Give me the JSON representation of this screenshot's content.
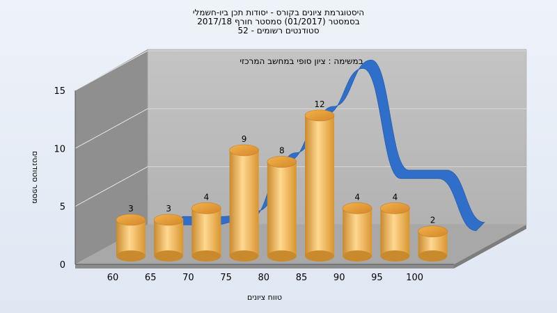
{
  "chart_data": {
    "type": "bar",
    "title_lines": [
      "היסטוגרמת ציונים בקורס - יסודות תכן ביו-חשמלי",
      "בסמסטר  (01/2017)  סמסטר חורף 2017/18",
      "סטודנטים רשומים - 52"
    ],
    "subtitle": "במשימה : ציון סופי במחשב המרכזי",
    "xlabel": "טווח ציונים",
    "ylabel": "מספר סטודנטים",
    "categories": [
      "60",
      "65",
      "70",
      "75",
      "80",
      "85",
      "90",
      "95",
      "100"
    ],
    "x_ticks": [
      "60",
      "65",
      "70",
      "75",
      "80",
      "85",
      "90",
      "95",
      "100"
    ],
    "values": [
      3,
      3,
      4,
      9,
      8,
      12,
      4,
      4,
      2
    ],
    "y_ticks": [
      "0",
      "5",
      "10",
      "15"
    ],
    "ylim": [
      0,
      15
    ],
    "curve": {
      "type": "line",
      "values": [
        1,
        1,
        1.5,
        6.5,
        10.5,
        14.5,
        5,
        5,
        0.5
      ]
    },
    "colors": {
      "bar_dark": "#c98a2e",
      "bar_light": "#ffd890",
      "curve": "#2f6fc9",
      "wall_back": "#b9b9b9",
      "wall_side": "#8f8f8f",
      "floor": "#a9a9a9"
    }
  }
}
